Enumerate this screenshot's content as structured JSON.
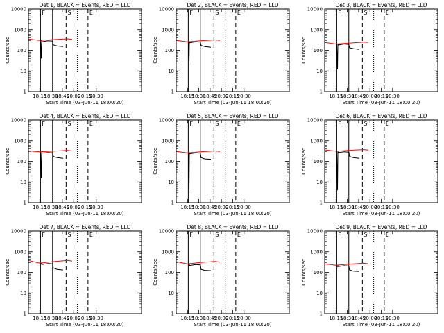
{
  "page": {
    "colors": {
      "background": "#ffffff",
      "events": "#000000",
      "lld": "#ff0000"
    }
  },
  "chart_data": [
    {
      "type": "line",
      "title": "Det 1, BLACK = Events, RED = LLD",
      "xlabel": "Start Time (03-Jun-11 18:00:20)",
      "ylabel": "Counts/sec",
      "y_scale": "log",
      "ylim": [
        1,
        10000
      ],
      "xlim_minutes": [
        0,
        150
      ],
      "x_tick_labels": [
        "18:15",
        "18:30",
        "18:45",
        "20:00",
        "20:15",
        "20:30"
      ],
      "y_tick_labels": [
        "1",
        "10",
        "100",
        "1000",
        "10000"
      ],
      "markers": [
        {
          "label": "F",
          "style": "solid"
        },
        {
          "label": "",
          "style": "solid"
        },
        {
          "label": "S",
          "style": "dashed"
        },
        {
          "label": "",
          "style": "dotted"
        },
        {
          "label": "E",
          "style": "dashed"
        }
      ],
      "series": [
        {
          "color": "#ff0000",
          "x": [
            0,
            15,
            32,
            52,
            58
          ],
          "y": [
            350,
            300,
            330,
            360,
            340
          ]
        },
        {
          "color": "#000000",
          "x": [
            16,
            17,
            17.5,
            18,
            26,
            32,
            33,
            38,
            46
          ],
          "y": [
            300,
            40,
            300,
            260,
            290,
            280,
            180,
            160,
            150
          ]
        }
      ]
    },
    {
      "type": "line",
      "title": "Det 2, BLACK = Events, RED = LLD",
      "xlabel": "Start Time (03-Jun-11 18:00:20)",
      "ylabel": "Counts/sec",
      "y_scale": "log",
      "ylim": [
        1,
        10000
      ],
      "xlim_minutes": [
        0,
        150
      ],
      "x_tick_labels": [
        "18:15",
        "18:30",
        "18:45",
        "20:00",
        "20:15",
        "20:30"
      ],
      "y_tick_labels": [
        "1",
        "10",
        "100",
        "1000",
        "10000"
      ],
      "markers": [
        {
          "label": "F",
          "style": "solid"
        },
        {
          "label": "",
          "style": "solid"
        },
        {
          "label": "S",
          "style": "dashed"
        },
        {
          "label": "",
          "style": "dotted"
        },
        {
          "label": "E",
          "style": "dashed"
        }
      ],
      "series": [
        {
          "color": "#ff0000",
          "x": [
            0,
            15,
            32,
            52,
            58
          ],
          "y": [
            300,
            260,
            290,
            320,
            300
          ]
        },
        {
          "color": "#000000",
          "x": [
            16,
            17,
            17.5,
            18,
            26,
            32,
            33,
            38,
            46
          ],
          "y": [
            260,
            25,
            260,
            230,
            260,
            250,
            170,
            150,
            140
          ]
        }
      ]
    },
    {
      "type": "line",
      "title": "Det 3, BLACK = Events, RED = LLD",
      "xlabel": "Start Time (03-Jun-11 18:00:20)",
      "ylabel": "Counts/sec",
      "y_scale": "log",
      "ylim": [
        1,
        10000
      ],
      "xlim_minutes": [
        0,
        150
      ],
      "x_tick_labels": [
        "18:15",
        "18:30",
        "18:45",
        "20:00",
        "20:15",
        "20:30"
      ],
      "y_tick_labels": [
        "1",
        "10",
        "100",
        "1000",
        "10000"
      ],
      "markers": [
        {
          "label": "F",
          "style": "solid"
        },
        {
          "label": "",
          "style": "solid"
        },
        {
          "label": "S",
          "style": "dashed"
        },
        {
          "label": "",
          "style": "dotted"
        },
        {
          "label": "E",
          "style": "dashed"
        }
      ],
      "series": [
        {
          "color": "#ff0000",
          "x": [
            0,
            15,
            32,
            52,
            58
          ],
          "y": [
            240,
            200,
            220,
            250,
            240
          ]
        },
        {
          "color": "#000000",
          "x": [
            16,
            17,
            17.5,
            18,
            26,
            32,
            33,
            38,
            46
          ],
          "y": [
            200,
            12,
            200,
            180,
            200,
            190,
            130,
            120,
            110
          ]
        }
      ]
    },
    {
      "type": "line",
      "title": "Det 4, BLACK = Events, RED = LLD",
      "xlabel": "Start Time (03-Jun-11 18:00:20)",
      "ylabel": "Counts/sec",
      "y_scale": "log",
      "ylim": [
        1,
        10000
      ],
      "xlim_minutes": [
        0,
        150
      ],
      "x_tick_labels": [
        "18:15",
        "18:30",
        "18:45",
        "20:00",
        "20:15",
        "20:30"
      ],
      "y_tick_labels": [
        "1",
        "10",
        "100",
        "1000",
        "10000"
      ],
      "markers": [
        {
          "label": "F",
          "style": "solid"
        },
        {
          "label": "",
          "style": "solid"
        },
        {
          "label": "S",
          "style": "dashed"
        },
        {
          "label": "",
          "style": "dotted"
        },
        {
          "label": "E",
          "style": "dashed"
        }
      ],
      "series": [
        {
          "color": "#ff0000",
          "x": [
            0,
            15,
            32,
            52,
            58
          ],
          "y": [
            320,
            290,
            310,
            340,
            320
          ]
        },
        {
          "color": "#000000",
          "x": [
            16,
            17,
            17.5,
            18,
            26,
            32,
            33,
            38,
            46
          ],
          "y": [
            280,
            15,
            280,
            250,
            270,
            260,
            170,
            150,
            140
          ]
        }
      ]
    },
    {
      "type": "line",
      "title": "Det 5, BLACK = Events, RED = LLD",
      "xlabel": "Start Time (03-Jun-11 18:00:20)",
      "ylabel": "Counts/sec",
      "y_scale": "log",
      "ylim": [
        1,
        10000
      ],
      "xlim_minutes": [
        0,
        150
      ],
      "x_tick_labels": [
        "18:15",
        "18:30",
        "18:45",
        "20:00",
        "20:15",
        "20:30"
      ],
      "y_tick_labels": [
        "1",
        "10",
        "100",
        "1000",
        "10000"
      ],
      "markers": [
        {
          "label": "F",
          "style": "solid"
        },
        {
          "label": "",
          "style": "solid"
        },
        {
          "label": "S",
          "style": "dashed"
        },
        {
          "label": "",
          "style": "dotted"
        },
        {
          "label": "E",
          "style": "dashed"
        }
      ],
      "series": [
        {
          "color": "#ff0000",
          "x": [
            0,
            15,
            32,
            52,
            58
          ],
          "y": [
            300,
            260,
            290,
            320,
            300
          ]
        },
        {
          "color": "#000000",
          "x": [
            16,
            17,
            17.5,
            18,
            26,
            32,
            33,
            38,
            46
          ],
          "y": [
            260,
            3,
            260,
            230,
            260,
            250,
            150,
            130,
            125
          ]
        }
      ]
    },
    {
      "type": "line",
      "title": "Det 6, BLACK = Events, RED = LLD",
      "xlabel": "Start Time (03-Jun-11 18:00:20)",
      "ylabel": "Counts/sec",
      "y_scale": "log",
      "ylim": [
        1,
        10000
      ],
      "xlim_minutes": [
        0,
        150
      ],
      "x_tick_labels": [
        "18:15",
        "18:30",
        "18:45",
        "20:00",
        "20:15",
        "20:30"
      ],
      "y_tick_labels": [
        "1",
        "10",
        "100",
        "1000",
        "10000"
      ],
      "markers": [
        {
          "label": "F",
          "style": "solid"
        },
        {
          "label": "",
          "style": "solid"
        },
        {
          "label": "S",
          "style": "dashed"
        },
        {
          "label": "",
          "style": "dotted"
        },
        {
          "label": "E",
          "style": "dashed"
        }
      ],
      "series": [
        {
          "color": "#ff0000",
          "x": [
            0,
            15,
            32,
            52,
            58
          ],
          "y": [
            360,
            310,
            340,
            370,
            350
          ]
        },
        {
          "color": "#000000",
          "x": [
            16,
            17,
            17.5,
            18,
            26,
            32,
            33,
            38,
            46
          ],
          "y": [
            300,
            4,
            300,
            270,
            290,
            280,
            170,
            150,
            140
          ]
        }
      ]
    },
    {
      "type": "line",
      "title": "Det 7, BLACK = Events, RED = LLD",
      "xlabel": "Start Time (03-Jun-11 18:00:20)",
      "ylabel": "Counts/sec",
      "y_scale": "log",
      "ylim": [
        1,
        10000
      ],
      "xlim_minutes": [
        0,
        150
      ],
      "x_tick_labels": [
        "18:15",
        "18:30",
        "18:45",
        "20:00",
        "20:15",
        "20:30"
      ],
      "y_tick_labels": [
        "1",
        "10",
        "100",
        "1000",
        "10000"
      ],
      "markers": [
        {
          "label": "F",
          "style": "solid"
        },
        {
          "label": "",
          "style": "solid"
        },
        {
          "label": "S",
          "style": "dashed"
        },
        {
          "label": "",
          "style": "dotted"
        },
        {
          "label": "E",
          "style": "dashed"
        }
      ],
      "series": [
        {
          "color": "#ff0000",
          "x": [
            0,
            15,
            32,
            52,
            58
          ],
          "y": [
            380,
            280,
            330,
            380,
            350
          ]
        },
        {
          "color": "#000000",
          "x": [
            16,
            17,
            17.5,
            18,
            26,
            32,
            33,
            38,
            46
          ],
          "y": [
            270,
            250,
            270,
            240,
            270,
            260,
            160,
            140,
            130
          ]
        }
      ]
    },
    {
      "type": "line",
      "title": "Det 8, BLACK = Events, RED = LLD",
      "xlabel": "Start Time (03-Jun-11 18:00:20)",
      "ylabel": "Counts/sec",
      "y_scale": "log",
      "ylim": [
        1,
        10000
      ],
      "xlim_minutes": [
        0,
        150
      ],
      "x_tick_labels": [
        "18:15",
        "18:30",
        "18:45",
        "20:00",
        "20:15",
        "20:30"
      ],
      "y_tick_labels": [
        "1",
        "10",
        "100",
        "1000",
        "10000"
      ],
      "markers": [
        {
          "label": "F",
          "style": "solid"
        },
        {
          "label": "",
          "style": "solid"
        },
        {
          "label": "S",
          "style": "dashed"
        },
        {
          "label": "",
          "style": "dotted"
        },
        {
          "label": "E",
          "style": "dashed"
        }
      ],
      "series": [
        {
          "color": "#ff0000",
          "x": [
            0,
            15,
            32,
            52,
            58
          ],
          "y": [
            330,
            260,
            300,
            340,
            310
          ]
        },
        {
          "color": "#000000",
          "x": [
            16,
            17,
            17.5,
            18,
            26,
            32,
            33,
            38,
            46
          ],
          "y": [
            240,
            220,
            240,
            215,
            240,
            230,
            140,
            125,
            120
          ]
        }
      ]
    },
    {
      "type": "line",
      "title": "Det 9, BLACK = Events, RED = LLD",
      "xlabel": "Start Time (03-Jun-11 18:00:20)",
      "ylabel": "Counts/sec",
      "y_scale": "log",
      "ylim": [
        1,
        10000
      ],
      "xlim_minutes": [
        0,
        150
      ],
      "x_tick_labels": [
        "18:15",
        "18:30",
        "18:45",
        "20:00",
        "20:15",
        "20:30"
      ],
      "y_tick_labels": [
        "1",
        "10",
        "100",
        "1000",
        "10000"
      ],
      "markers": [
        {
          "label": "F",
          "style": "solid"
        },
        {
          "label": "",
          "style": "solid"
        },
        {
          "label": "S",
          "style": "dashed"
        },
        {
          "label": "",
          "style": "dotted"
        },
        {
          "label": "E",
          "style": "dashed"
        }
      ],
      "series": [
        {
          "color": "#ff0000",
          "x": [
            0,
            15,
            32,
            52,
            58
          ],
          "y": [
            260,
            220,
            250,
            280,
            260
          ]
        },
        {
          "color": "#000000",
          "x": [
            16,
            17,
            17.5,
            18,
            26,
            32,
            33,
            38,
            46
          ],
          "y": [
            210,
            190,
            210,
            190,
            210,
            200,
            130,
            115,
            110
          ]
        }
      ]
    }
  ]
}
